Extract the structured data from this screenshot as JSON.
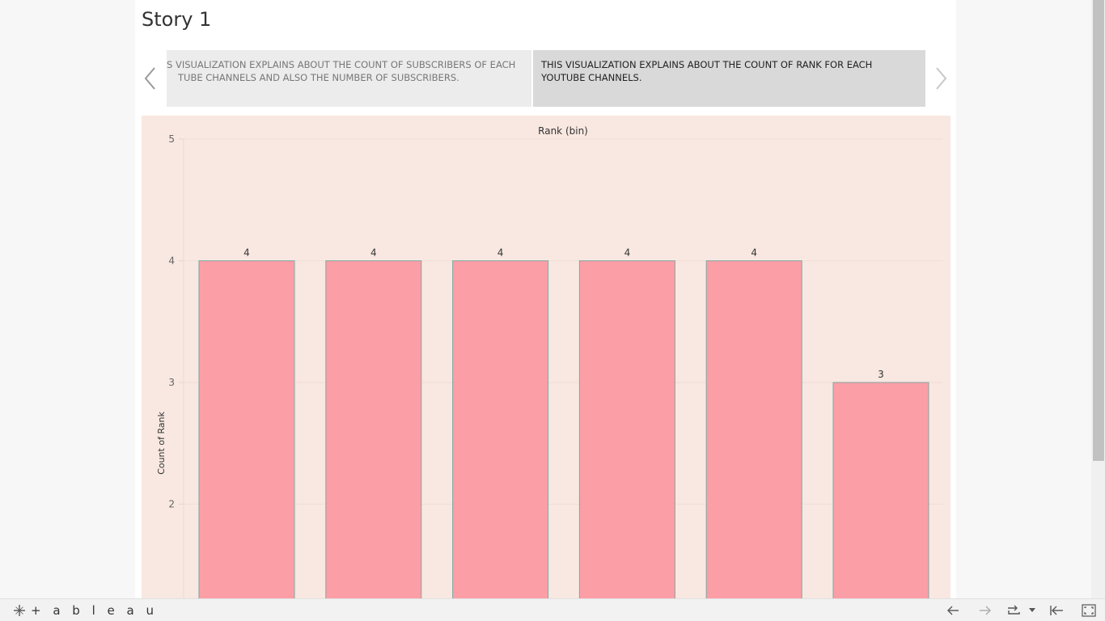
{
  "story": {
    "title": "Story 1",
    "points": [
      {
        "text": "THIS VISUALIZATION EXPLAINS ABOUT THE COUNT OF SUBSCRIBERS OF EACH YOUTUBE CHANNELS AND ALSO THE NUMBER OF SUBSCRIBERS.",
        "visible_text": "S VISUALIZATION EXPLAINS ABOUT THE COUNT OF SUBSCRIBERS OF EACH TUBE CHANNELS AND ALSO THE NUMBER OF SUBSCRIBERS."
      },
      {
        "text": "THIS VISUALIZATION EXPLAINS ABOUT THE COUNT OF RANK FOR EACH YOUTUBE CHANNELS."
      }
    ]
  },
  "chart_data": {
    "type": "bar",
    "title": "Rank (bin)",
    "xlabel": "",
    "ylabel": "Count of Rank",
    "categories": [
      "",
      "",
      "",
      "",
      "",
      ""
    ],
    "values": [
      4,
      4,
      4,
      4,
      4,
      3
    ],
    "value_labels": [
      "4",
      "4",
      "4",
      "4",
      "4",
      "3"
    ],
    "yticks": [
      "5",
      "4",
      "3",
      "2"
    ],
    "ylim": [
      1.2,
      5
    ],
    "bar_color": "#fc9ea6",
    "bar_border_color": "#7fa8a4",
    "background": "#f8e8e1",
    "grid": true
  },
  "toolbar": {
    "logo_text": "+ a b l e a u",
    "icons": [
      "undo-icon",
      "redo-icon",
      "revert-icon",
      "revert-dropdown-icon",
      "back-to-start-icon",
      "fullscreen-icon"
    ]
  }
}
